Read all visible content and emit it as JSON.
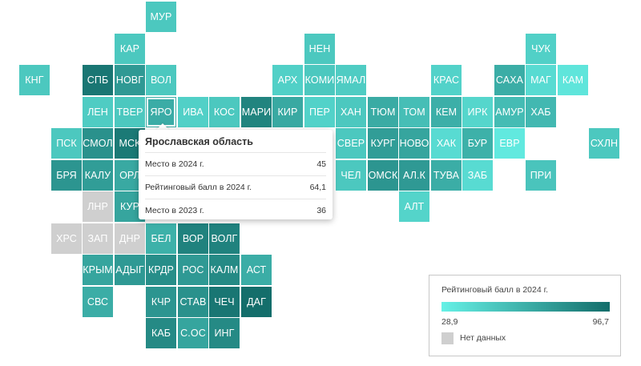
{
  "colors": {
    "scale_low": "#66f1e6",
    "scale_high": "#136d6a",
    "no_data": "#cfcfcf"
  },
  "tooltip": {
    "title": "Ярославская область",
    "rows": [
      {
        "label": "Место в 2024 г.",
        "value": "45"
      },
      {
        "label": "Рейтинговый балл в 2024 г.",
        "value": "64,1"
      },
      {
        "label": "Место в 2023 г.",
        "value": "36"
      }
    ]
  },
  "legend": {
    "title": "Рейтинговый балл в 2024 г.",
    "min_label": "28,9",
    "max_label": "96,7",
    "no_data_label": "Нет данных"
  },
  "chart_data": {
    "type": "heatmap",
    "value_range": [
      28.9,
      96.7
    ],
    "selected": "ЯРО",
    "tiles": [
      {
        "label": "МУР",
        "col": 4,
        "row": 0,
        "value": 50
      },
      {
        "label": "КАР",
        "col": 3,
        "row": 1,
        "value": 50
      },
      {
        "label": "НЕН",
        "col": 9,
        "row": 1,
        "value": 50
      },
      {
        "label": "ЧУК",
        "col": 16,
        "row": 1,
        "value": 46
      },
      {
        "label": "КНГ",
        "col": 0,
        "row": 2,
        "value": 50
      },
      {
        "label": "СПБ",
        "col": 2,
        "row": 2,
        "value": 92
      },
      {
        "label": "НОВГ",
        "col": 3,
        "row": 2,
        "value": 74
      },
      {
        "label": "ВОЛ",
        "col": 4,
        "row": 2,
        "value": 50
      },
      {
        "label": "АРХ",
        "col": 8,
        "row": 2,
        "value": 46
      },
      {
        "label": "КОМИ",
        "col": 9,
        "row": 2,
        "value": 50
      },
      {
        "label": "ЯМАЛ",
        "col": 10,
        "row": 2,
        "value": 48
      },
      {
        "label": "КРАС",
        "col": 13,
        "row": 2,
        "value": 45
      },
      {
        "label": "САХА",
        "col": 15,
        "row": 2,
        "value": 64
      },
      {
        "label": "МАГ",
        "col": 16,
        "row": 2,
        "value": 40
      },
      {
        "label": "КАМ",
        "col": 17,
        "row": 2,
        "value": 35
      },
      {
        "label": "ЛЕН",
        "col": 2,
        "row": 3,
        "value": 48
      },
      {
        "label": "ТВЕР",
        "col": 3,
        "row": 3,
        "value": 50
      },
      {
        "label": "ЯРО",
        "col": 4,
        "row": 3,
        "value": 64.1
      },
      {
        "label": "ИВА",
        "col": 5,
        "row": 3,
        "value": 46
      },
      {
        "label": "КОС",
        "col": 6,
        "row": 3,
        "value": 50
      },
      {
        "label": "МАРИ",
        "col": 7,
        "row": 3,
        "value": 85
      },
      {
        "label": "КИР",
        "col": 8,
        "row": 3,
        "value": 66
      },
      {
        "label": "ПЕР",
        "col": 9,
        "row": 3,
        "value": 45
      },
      {
        "label": "ХАН",
        "col": 10,
        "row": 3,
        "value": 50
      },
      {
        "label": "ТЮМ",
        "col": 11,
        "row": 3,
        "value": 65
      },
      {
        "label": "ТОМ",
        "col": 12,
        "row": 3,
        "value": 55
      },
      {
        "label": "КЕМ",
        "col": 13,
        "row": 3,
        "value": 63
      },
      {
        "label": "ИРК",
        "col": 14,
        "row": 3,
        "value": 43
      },
      {
        "label": "АМУР",
        "col": 15,
        "row": 3,
        "value": 56
      },
      {
        "label": "ХАБ",
        "col": 16,
        "row": 3,
        "value": 58
      },
      {
        "label": "ПСК",
        "col": 1,
        "row": 4,
        "value": 50
      },
      {
        "label": "СМОЛ",
        "col": 2,
        "row": 4,
        "value": 78
      },
      {
        "label": "МСК",
        "col": 3,
        "row": 4,
        "value": 90
      },
      {
        "label": "СВЕР",
        "col": 10,
        "row": 4,
        "value": 50
      },
      {
        "label": "КУРГ",
        "col": 11,
        "row": 4,
        "value": 72
      },
      {
        "label": "НОВО",
        "col": 12,
        "row": 4,
        "value": 68
      },
      {
        "label": "ХАК",
        "col": 13,
        "row": 4,
        "value": 40
      },
      {
        "label": "БУР",
        "col": 14,
        "row": 4,
        "value": 62
      },
      {
        "label": "ЕВР",
        "col": 15,
        "row": 4,
        "value": 33
      },
      {
        "label": "СХЛН",
        "col": 18,
        "row": 4,
        "value": 50
      },
      {
        "label": "БРЯ",
        "col": 1,
        "row": 5,
        "value": 76
      },
      {
        "label": "КАЛУ",
        "col": 2,
        "row": 5,
        "value": 72
      },
      {
        "label": "ОРЛ",
        "col": 3,
        "row": 5,
        "value": 66
      },
      {
        "label": "ЧЕЛ",
        "col": 10,
        "row": 5,
        "value": 50
      },
      {
        "label": "ОМСК",
        "col": 11,
        "row": 5,
        "value": 76
      },
      {
        "label": "АЛ.К",
        "col": 12,
        "row": 5,
        "value": 74
      },
      {
        "label": "ТУВА",
        "col": 13,
        "row": 5,
        "value": 64
      },
      {
        "label": "ЗАБ",
        "col": 14,
        "row": 5,
        "value": 40
      },
      {
        "label": "ПРИ",
        "col": 16,
        "row": 5,
        "value": 52
      },
      {
        "label": "ЛНР",
        "col": 2,
        "row": 6,
        "value": null
      },
      {
        "label": "КУР",
        "col": 3,
        "row": 6,
        "value": 68
      },
      {
        "label": "АЛТ",
        "col": 12,
        "row": 6,
        "value": 44
      },
      {
        "label": "ХРС",
        "col": 1,
        "row": 7,
        "value": null
      },
      {
        "label": "ЗАП",
        "col": 2,
        "row": 7,
        "value": null
      },
      {
        "label": "ДНР",
        "col": 3,
        "row": 7,
        "value": null
      },
      {
        "label": "БЕЛ",
        "col": 4,
        "row": 7,
        "value": 62
      },
      {
        "label": "ВОР",
        "col": 5,
        "row": 7,
        "value": 86
      },
      {
        "label": "ВОЛГ",
        "col": 6,
        "row": 7,
        "value": 86
      },
      {
        "label": "КРЫМ",
        "col": 2,
        "row": 8,
        "value": 68
      },
      {
        "label": "АДЫГ",
        "col": 3,
        "row": 8,
        "value": 74
      },
      {
        "label": "КРДР",
        "col": 4,
        "row": 8,
        "value": 80
      },
      {
        "label": "РОС",
        "col": 5,
        "row": 8,
        "value": 74
      },
      {
        "label": "КАЛМ",
        "col": 6,
        "row": 8,
        "value": 82
      },
      {
        "label": "АСТ",
        "col": 7,
        "row": 8,
        "value": 64
      },
      {
        "label": "СВС",
        "col": 2,
        "row": 9,
        "value": 64
      },
      {
        "label": "КЧР",
        "col": 4,
        "row": 9,
        "value": 76
      },
      {
        "label": "СТАВ",
        "col": 5,
        "row": 9,
        "value": 78
      },
      {
        "label": "ЧЕЧ",
        "col": 6,
        "row": 9,
        "value": 92
      },
      {
        "label": "ДАГ",
        "col": 7,
        "row": 9,
        "value": 96
      },
      {
        "label": "КАБ",
        "col": 4,
        "row": 10,
        "value": 82
      },
      {
        "label": "С.ОС",
        "col": 5,
        "row": 10,
        "value": 68
      },
      {
        "label": "ИНГ",
        "col": 6,
        "row": 10,
        "value": 82
      }
    ]
  }
}
